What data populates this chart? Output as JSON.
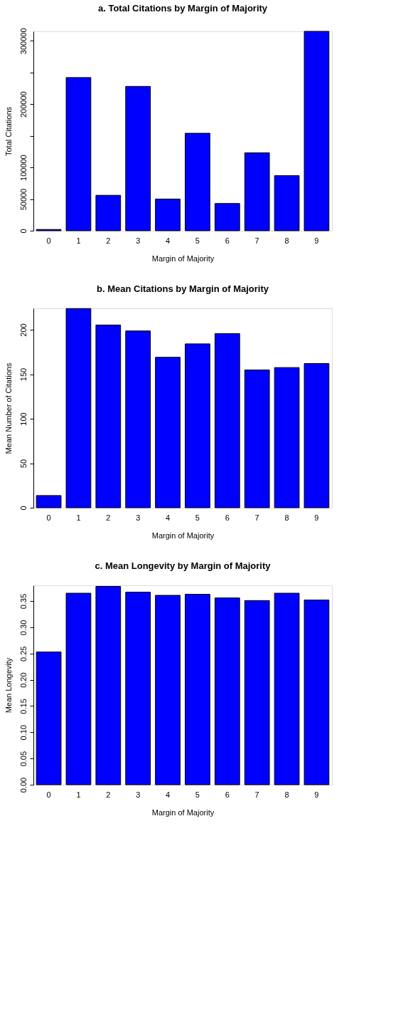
{
  "chart_data": [
    {
      "type": "bar",
      "title": "a. Total Citations by Margin of Majority",
      "xlabel": "Margin of Majority",
      "ylabel": "Total Citations",
      "categories": [
        "0",
        "1",
        "2",
        "3",
        "4",
        "5",
        "6",
        "7",
        "8",
        "9"
      ],
      "series": [
        {
          "color": "#0000ff",
          "values": [
            2000,
            242000,
            56000,
            228000,
            50000,
            154000,
            43000,
            123000,
            87000,
            315000
          ]
        }
      ],
      "ylim": [
        0,
        315000
      ],
      "yticks": [
        0,
        50000,
        100000,
        {
          "value": 150000,
          "label": null
        },
        200000,
        {
          "value": 250000,
          "label": null
        },
        300000
      ],
      "grid": false,
      "legend": false
    },
    {
      "type": "bar",
      "title": "b. Mean Citations by Margin of Majority",
      "xlabel": "Margin of Majority",
      "ylabel": "Mean Number of Citations",
      "categories": [
        "0",
        "1",
        "2",
        "3",
        "4",
        "5",
        "6",
        "7",
        "8",
        "9"
      ],
      "series": [
        {
          "color": "#0000ff",
          "values": [
            13.7,
            223.8,
            205.3,
            198.6,
            169.0,
            184.1,
            195.7,
            154.8,
            157.5,
            162.0
          ]
        }
      ],
      "ylim": [
        0,
        224
      ],
      "yticks": [
        0,
        50,
        100,
        150,
        200
      ],
      "grid": false,
      "legend": false
    },
    {
      "type": "bar",
      "title": "c. Mean Longevity by Margin of Majority",
      "xlabel": "Margin of Majority",
      "ylabel": "Mean Longevity",
      "categories": [
        "0",
        "1",
        "2",
        "3",
        "4",
        "5",
        "6",
        "7",
        "8",
        "9"
      ],
      "series": [
        {
          "color": "#0000ff",
          "values": [
            0.253,
            0.365,
            0.378,
            0.367,
            0.361,
            0.363,
            0.356,
            0.351,
            0.365,
            0.352
          ]
        }
      ],
      "ylim": [
        0,
        0.38
      ],
      "yticks": [
        {
          "value": 0,
          "label": "0.00"
        },
        {
          "value": 0.05,
          "label": "0.05"
        },
        {
          "value": 0.1,
          "label": "0.10"
        },
        {
          "value": 0.15,
          "label": "0.15"
        },
        {
          "value": 0.2,
          "label": "0.20"
        },
        {
          "value": 0.25,
          "label": "0.25"
        },
        {
          "value": 0.3,
          "label": "0.30"
        },
        {
          "value": 0.35,
          "label": "0.35"
        }
      ],
      "grid": false,
      "legend": false
    }
  ]
}
